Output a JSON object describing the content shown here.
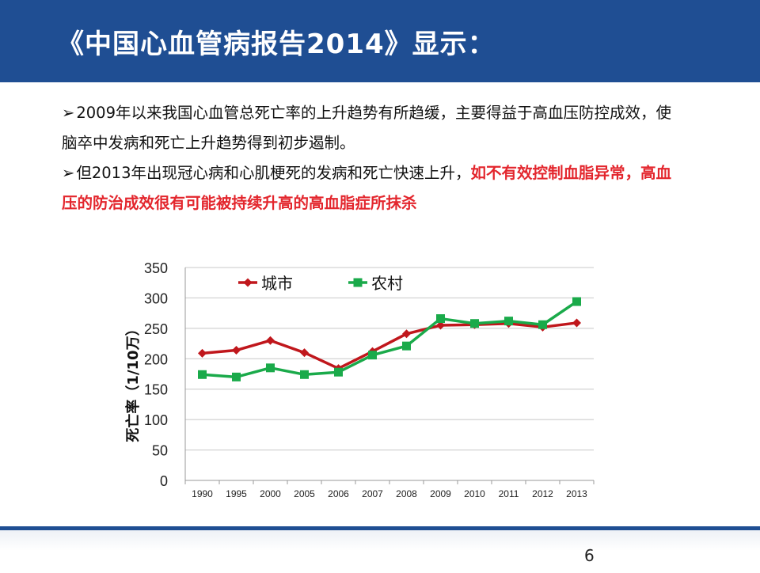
{
  "slide": {
    "title": "《中国心血管病报告2014》显示：",
    "bullet_symbol": "➢",
    "paragraph1": "2009年以来我国心血管总死亡率的上升趋势有所趋缓，主要得益于高血压防控成效，使脑卒中发病和死亡上升趋势得到初步遏制。",
    "paragraph2_plain": "但2013年出现冠心病和心肌梗死的发病和死亡快速上升，",
    "paragraph2_red": "如不有效控制血脂异常，高血压的防治成效很有可能被持续升高的高血脂症所抹杀",
    "page_number": "6",
    "colors": {
      "header": "#1f4e93",
      "highlight": "#e3262d"
    }
  },
  "chart_data": {
    "type": "line",
    "categories": [
      "1990",
      "1995",
      "2000",
      "2005",
      "2006",
      "2007",
      "2008",
      "2009",
      "2010",
      "2011",
      "2012",
      "2013"
    ],
    "series": [
      {
        "name": "城市",
        "color": "#c0171c",
        "marker": "diamond",
        "values": [
          209,
          214,
          230,
          210,
          184,
          212,
          241,
          255,
          256,
          258,
          252,
          259
        ]
      },
      {
        "name": "农村",
        "color": "#1aaa4a",
        "marker": "square",
        "values": [
          174,
          170,
          185,
          174,
          178,
          206,
          221,
          266,
          258,
          262,
          256,
          294
        ]
      }
    ],
    "ylabel": "死亡率（1/10万）",
    "xlabel": "",
    "ylim": [
      0,
      350
    ],
    "yticks": [
      0,
      50,
      100,
      150,
      200,
      250,
      300,
      350
    ],
    "grid": true,
    "legend": "top-left"
  }
}
